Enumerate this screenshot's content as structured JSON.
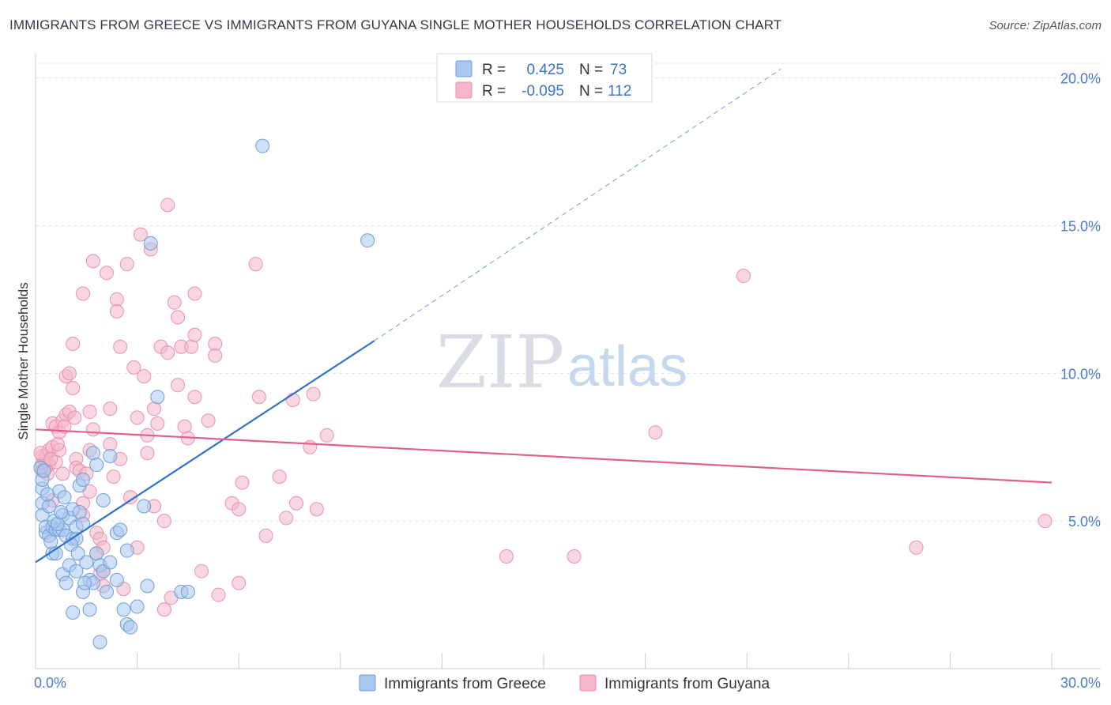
{
  "title": "IMMIGRANTS FROM GREECE VS IMMIGRANTS FROM GUYANA SINGLE MOTHER HOUSEHOLDS CORRELATION CHART",
  "source": "Source: ZipAtlas.com",
  "watermark": {
    "zip": "ZIP",
    "atlas": "atlas"
  },
  "colors": {
    "greece_fill": "#a9c7ee",
    "greece_stroke": "#6f9ed6",
    "greece_line": "#2f72c8",
    "guyana_fill": "#f4b6c9",
    "guyana_stroke": "#e892ad",
    "guyana_line": "#e0608c",
    "tick_text": "#4a7cc9",
    "grid": "#dde3ea"
  },
  "legend": {
    "rows": [
      {
        "r_label": "R =",
        "r_value": "0.425",
        "n_label": "N =",
        "n_value": "73"
      },
      {
        "r_label": "R =",
        "r_value": "-0.095",
        "n_label": "N =",
        "n_value": "112"
      }
    ]
  },
  "chart_data": {
    "type": "scatter",
    "title": "IMMIGRANTS FROM GREECE VS IMMIGRANTS FROM GUYANA SINGLE MOTHER HOUSEHOLDS CORRELATION CHART",
    "xlabel": "",
    "ylabel": "Single Mother Households",
    "xlim": [
      0,
      30
    ],
    "ylim": [
      0,
      20.5
    ],
    "x_tick_labels": [
      "0.0%",
      "30.0%"
    ],
    "y_ticks": [
      5,
      10,
      15,
      20
    ],
    "y_tick_labels": [
      "5.0%",
      "10.0%",
      "15.0%",
      "20.0%"
    ],
    "grid": true,
    "legend_position": "top-center",
    "series": [
      {
        "name": "Immigrants from Greece",
        "r": 0.425,
        "n": 73,
        "trend": {
          "x": [
            0,
            10
          ],
          "y": [
            3.6,
            11.1
          ],
          "dashed_to": [
            22,
            20.3
          ]
        },
        "points": [
          [
            0.2,
            6.1
          ],
          [
            0.2,
            6.4
          ],
          [
            0.2,
            5.6
          ],
          [
            0.2,
            5.2
          ],
          [
            0.3,
            4.6
          ],
          [
            0.3,
            4.8
          ],
          [
            0.4,
            4.5
          ],
          [
            0.4,
            5.5
          ],
          [
            0.5,
            4.8
          ],
          [
            0.5,
            3.9
          ],
          [
            0.6,
            4.7
          ],
          [
            0.6,
            3.9
          ],
          [
            0.7,
            6.0
          ],
          [
            0.7,
            4.7
          ],
          [
            0.8,
            5.2
          ],
          [
            0.8,
            4.7
          ],
          [
            0.8,
            3.2
          ],
          [
            0.9,
            2.9
          ],
          [
            0.9,
            4.5
          ],
          [
            1.0,
            5.1
          ],
          [
            1.0,
            3.5
          ],
          [
            1.1,
            4.4
          ],
          [
            1.1,
            5.4
          ],
          [
            1.1,
            1.9
          ],
          [
            1.2,
            4.4
          ],
          [
            1.2,
            4.8
          ],
          [
            1.2,
            3.3
          ],
          [
            1.3,
            6.2
          ],
          [
            1.3,
            5.3
          ],
          [
            1.4,
            6.4
          ],
          [
            1.4,
            4.9
          ],
          [
            1.4,
            2.6
          ],
          [
            1.5,
            3.6
          ],
          [
            1.6,
            3.0
          ],
          [
            1.6,
            2.0
          ],
          [
            1.7,
            2.9
          ],
          [
            1.7,
            7.3
          ],
          [
            1.8,
            6.9
          ],
          [
            1.8,
            3.9
          ],
          [
            1.9,
            3.5
          ],
          [
            1.9,
            0.9
          ],
          [
            2.0,
            3.3
          ],
          [
            2.0,
            5.7
          ],
          [
            2.1,
            2.6
          ],
          [
            2.2,
            7.2
          ],
          [
            2.2,
            3.6
          ],
          [
            2.4,
            3.0
          ],
          [
            2.4,
            4.6
          ],
          [
            2.5,
            4.7
          ],
          [
            2.6,
            2.0
          ],
          [
            2.7,
            1.5
          ],
          [
            2.7,
            4.0
          ],
          [
            2.8,
            1.4
          ],
          [
            3.0,
            2.1
          ],
          [
            3.2,
            5.5
          ],
          [
            3.3,
            2.8
          ],
          [
            3.4,
            14.4
          ],
          [
            3.6,
            9.2
          ],
          [
            4.3,
            2.6
          ],
          [
            4.5,
            2.6
          ],
          [
            6.7,
            17.7
          ],
          [
            9.8,
            14.5
          ],
          [
            0.15,
            6.8
          ],
          [
            0.25,
            6.7
          ],
          [
            0.35,
            5.9
          ],
          [
            0.45,
            4.3
          ],
          [
            0.55,
            5.0
          ],
          [
            0.65,
            4.9
          ],
          [
            0.75,
            5.3
          ],
          [
            0.85,
            5.8
          ],
          [
            1.05,
            4.2
          ],
          [
            1.25,
            3.9
          ],
          [
            1.45,
            2.9
          ]
        ]
      },
      {
        "name": "Immigrants from Guyana",
        "r": -0.095,
        "n": 112,
        "trend": {
          "x": [
            0,
            30
          ],
          "y": [
            8.1,
            6.3
          ]
        },
        "points": [
          [
            0.2,
            7.2
          ],
          [
            0.2,
            6.9
          ],
          [
            0.2,
            6.7
          ],
          [
            0.3,
            7.0
          ],
          [
            0.3,
            6.8
          ],
          [
            0.3,
            7.2
          ],
          [
            0.4,
            7.4
          ],
          [
            0.4,
            6.9
          ],
          [
            0.5,
            7.5
          ],
          [
            0.5,
            5.7
          ],
          [
            0.5,
            8.3
          ],
          [
            0.6,
            8.2
          ],
          [
            0.6,
            7.0
          ],
          [
            0.7,
            7.4
          ],
          [
            0.7,
            8.0
          ],
          [
            0.8,
            8.4
          ],
          [
            0.8,
            6.6
          ],
          [
            0.9,
            9.9
          ],
          [
            0.9,
            8.6
          ],
          [
            1.0,
            10.0
          ],
          [
            1.0,
            8.7
          ],
          [
            1.1,
            11.0
          ],
          [
            1.1,
            9.5
          ],
          [
            1.2,
            7.1
          ],
          [
            1.2,
            6.8
          ],
          [
            1.3,
            6.7
          ],
          [
            1.4,
            5.6
          ],
          [
            1.4,
            5.2
          ],
          [
            1.4,
            12.7
          ],
          [
            1.5,
            6.6
          ],
          [
            1.6,
            8.7
          ],
          [
            1.6,
            7.4
          ],
          [
            1.6,
            6.0
          ],
          [
            1.7,
            13.8
          ],
          [
            1.7,
            8.1
          ],
          [
            1.8,
            4.6
          ],
          [
            1.8,
            3.9
          ],
          [
            1.9,
            4.4
          ],
          [
            1.9,
            3.2
          ],
          [
            2.0,
            3.3
          ],
          [
            2.0,
            2.8
          ],
          [
            2.0,
            4.1
          ],
          [
            2.1,
            13.4
          ],
          [
            2.2,
            8.8
          ],
          [
            2.2,
            7.6
          ],
          [
            2.3,
            6.5
          ],
          [
            2.4,
            12.5
          ],
          [
            2.4,
            12.1
          ],
          [
            2.5,
            10.9
          ],
          [
            2.5,
            7.1
          ],
          [
            2.6,
            2.7
          ],
          [
            2.7,
            13.7
          ],
          [
            2.8,
            5.8
          ],
          [
            2.9,
            10.2
          ],
          [
            3.0,
            8.5
          ],
          [
            3.0,
            4.1
          ],
          [
            3.1,
            14.7
          ],
          [
            3.2,
            9.9
          ],
          [
            3.3,
            7.9
          ],
          [
            3.3,
            7.3
          ],
          [
            3.4,
            14.2
          ],
          [
            3.5,
            8.8
          ],
          [
            3.5,
            5.5
          ],
          [
            3.6,
            8.3
          ],
          [
            3.7,
            10.9
          ],
          [
            3.8,
            5.0
          ],
          [
            3.8,
            2.0
          ],
          [
            3.9,
            15.7
          ],
          [
            3.9,
            10.7
          ],
          [
            4.0,
            2.4
          ],
          [
            4.1,
            12.4
          ],
          [
            4.2,
            9.6
          ],
          [
            4.2,
            11.9
          ],
          [
            4.3,
            10.9
          ],
          [
            4.4,
            8.2
          ],
          [
            4.5,
            7.8
          ],
          [
            4.6,
            10.9
          ],
          [
            4.7,
            12.7
          ],
          [
            4.7,
            11.3
          ],
          [
            4.7,
            9.2
          ],
          [
            4.9,
            3.3
          ],
          [
            5.1,
            8.4
          ],
          [
            5.3,
            11.0
          ],
          [
            5.3,
            10.6
          ],
          [
            5.4,
            2.5
          ],
          [
            5.8,
            5.6
          ],
          [
            6.0,
            2.9
          ],
          [
            6.0,
            5.4
          ],
          [
            6.1,
            6.3
          ],
          [
            6.5,
            13.7
          ],
          [
            6.6,
            9.2
          ],
          [
            6.8,
            4.5
          ],
          [
            7.2,
            6.5
          ],
          [
            7.4,
            5.1
          ],
          [
            7.6,
            9.1
          ],
          [
            7.7,
            5.6
          ],
          [
            8.1,
            7.5
          ],
          [
            8.2,
            9.3
          ],
          [
            8.3,
            5.4
          ],
          [
            8.6,
            7.9
          ],
          [
            13.9,
            3.8
          ],
          [
            15.9,
            3.8
          ],
          [
            18.3,
            8.0
          ],
          [
            20.9,
            13.3
          ],
          [
            26.0,
            4.1
          ],
          [
            29.8,
            5.0
          ],
          [
            0.15,
            7.3
          ],
          [
            0.35,
            6.6
          ],
          [
            0.45,
            7.1
          ],
          [
            0.65,
            7.6
          ],
          [
            0.85,
            8.2
          ],
          [
            1.15,
            8.5
          ]
        ]
      }
    ]
  }
}
